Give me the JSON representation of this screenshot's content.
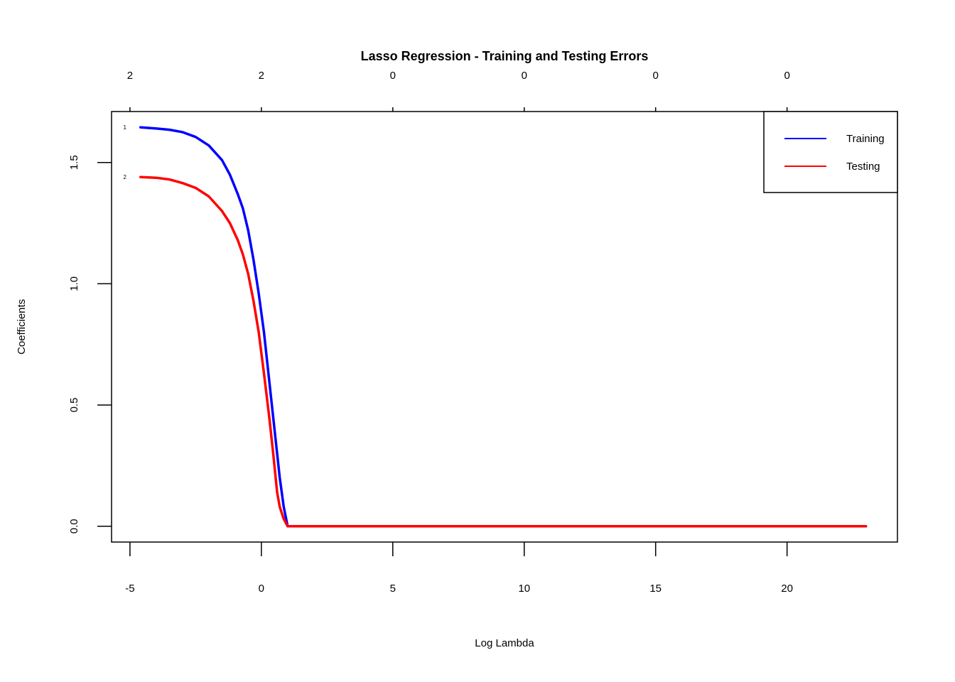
{
  "chart_data": {
    "type": "line",
    "title": "Lasso Regression - Training and Testing Errors",
    "xlabel": "Log Lambda",
    "ylabel": "Coefficients",
    "xlim": [
      -5.7,
      24.2
    ],
    "ylim": [
      -0.065,
      1.71
    ],
    "x_ticks": [
      -5,
      0,
      5,
      10,
      15,
      20
    ],
    "x_tick_labels": [
      "-5",
      "0",
      "5",
      "10",
      "15",
      "20"
    ],
    "y_ticks": [
      0.0,
      0.5,
      1.0,
      1.5
    ],
    "y_tick_labels": [
      "0.0",
      "0.5",
      "1.0",
      "1.5"
    ],
    "top_axis": {
      "positions": [
        -5,
        0,
        5,
        10,
        15,
        20
      ],
      "labels": [
        "2",
        "2",
        "0",
        "0",
        "0",
        "0"
      ]
    },
    "legend": {
      "position": "top-right",
      "entries": [
        {
          "label": "Training",
          "color": "#0000ff"
        },
        {
          "label": "Testing",
          "color": "#ff0000"
        }
      ]
    },
    "grid": false,
    "series": [
      {
        "name": "Training",
        "color": "#0000ff",
        "end_label": "1",
        "x": [
          -4.6,
          -4.0,
          -3.5,
          -3.0,
          -2.5,
          -2.0,
          -1.5,
          -1.2,
          -0.9,
          -0.7,
          -0.5,
          -0.3,
          -0.1,
          0.1,
          0.3,
          0.5,
          0.7,
          0.85,
          1.0,
          3.0,
          6.0,
          10.0,
          15.0,
          20.0,
          23.0
        ],
        "y": [
          1.645,
          1.64,
          1.635,
          1.625,
          1.605,
          1.57,
          1.51,
          1.45,
          1.37,
          1.31,
          1.22,
          1.1,
          0.96,
          0.8,
          0.6,
          0.4,
          0.2,
          0.08,
          0.0,
          0.0,
          0.0,
          0.0,
          0.0,
          0.0,
          0.0
        ]
      },
      {
        "name": "Testing",
        "color": "#ff0000",
        "end_label": "2",
        "x": [
          -4.6,
          -4.0,
          -3.5,
          -3.0,
          -2.5,
          -2.0,
          -1.5,
          -1.2,
          -0.9,
          -0.7,
          -0.5,
          -0.3,
          -0.1,
          0.1,
          0.3,
          0.45,
          0.6,
          0.7,
          0.85,
          1.0,
          3.0,
          6.0,
          10.0,
          15.0,
          20.0,
          23.0
        ],
        "y": [
          1.44,
          1.437,
          1.43,
          1.415,
          1.395,
          1.36,
          1.3,
          1.25,
          1.18,
          1.12,
          1.04,
          0.93,
          0.8,
          0.63,
          0.45,
          0.3,
          0.14,
          0.08,
          0.03,
          0.0,
          0.0,
          0.0,
          0.0,
          0.0,
          0.0,
          0.0
        ]
      }
    ]
  }
}
